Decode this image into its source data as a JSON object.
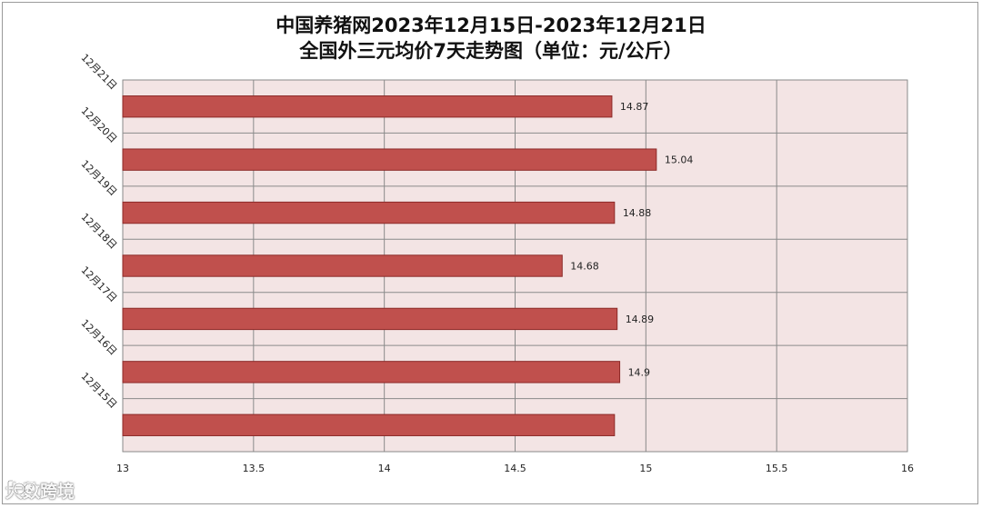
{
  "chart_data": {
    "type": "bar",
    "orientation": "horizontal",
    "title": "中国养猪网2023年12月15日-2023年12月21日",
    "subtitle": "全国外三元均价7天走势图（单位：元/公斤）",
    "categories": [
      "12月21日",
      "12月20日",
      "12月19日",
      "12月18日",
      "12月17日",
      "12月16日",
      "12月15日"
    ],
    "values": [
      14.87,
      15.04,
      14.88,
      14.68,
      14.89,
      14.9,
      14.88
    ],
    "data_labels": [
      "14.87",
      "15.04",
      "14.88",
      "14.68",
      "14.89",
      "14.9",
      ""
    ],
    "xlim": [
      13,
      16
    ],
    "xticks": [
      "13",
      "13.5",
      "14",
      "14.5",
      "15",
      "15.5",
      "16"
    ],
    "xtick_values": [
      13,
      13.5,
      14,
      14.5,
      15,
      15.5,
      16
    ],
    "grid": true,
    "legend": "none",
    "colors": {
      "bar": "#c0504d",
      "bar_border": "#8c2a28",
      "plot_bg": "#f3e4e4",
      "grid": "#8a8a8a"
    }
  },
  "watermark": {
    "text": "大数跨境"
  }
}
